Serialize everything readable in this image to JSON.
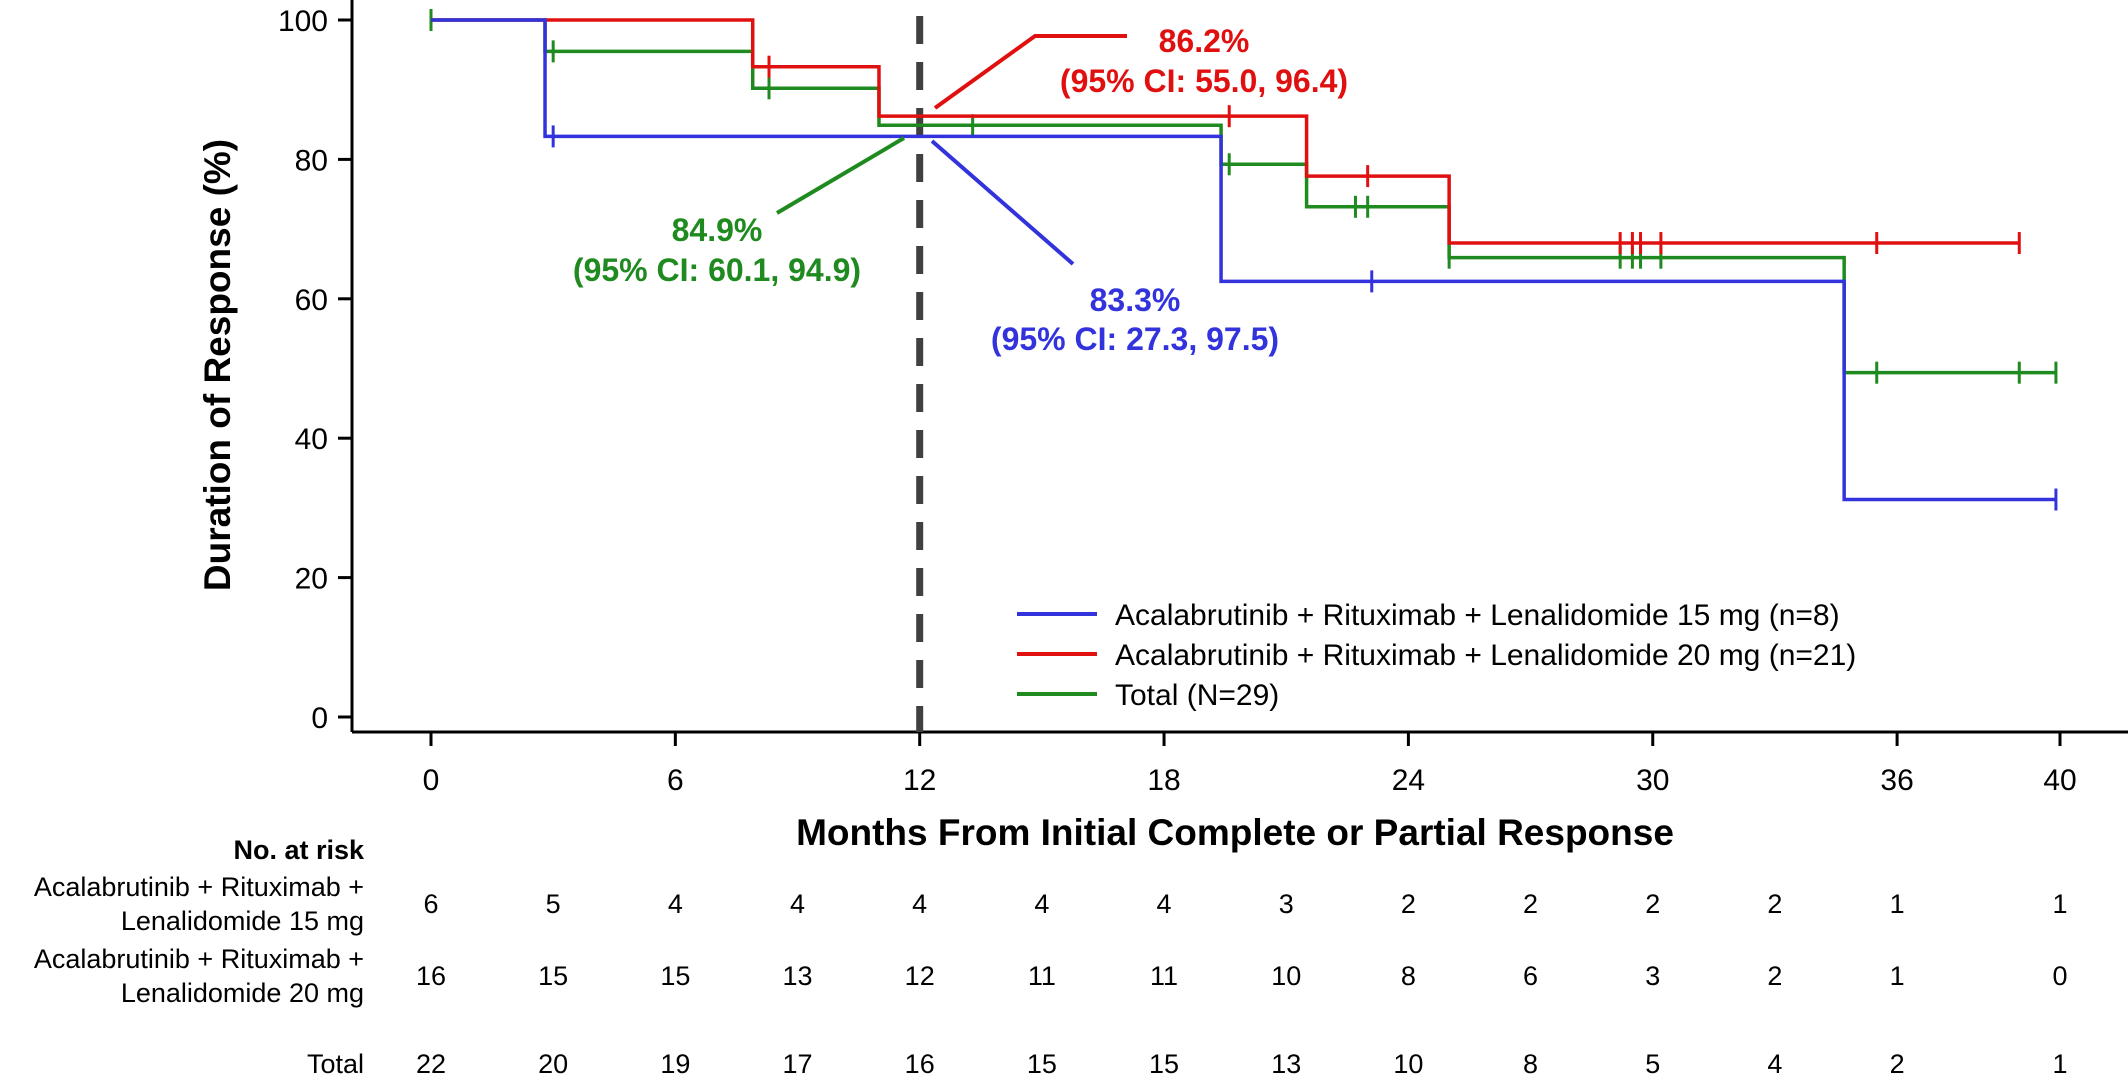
{
  "chart_data": {
    "type": "line",
    "subtype": "kaplan-meier step",
    "xlabel": "Months From Initial Complete or Partial Response",
    "ylabel": "Duration of Response (%)",
    "xlim": [
      0,
      40
    ],
    "ylim": [
      0,
      100
    ],
    "x_ticks": [
      0,
      6,
      12,
      18,
      24,
      30,
      36,
      40
    ],
    "y_ticks": [
      0,
      20,
      40,
      60,
      80,
      100
    ],
    "grid": false,
    "legend_position": "bottom-right",
    "reference_line": {
      "x": 12,
      "style": "dashed",
      "color": "#404040"
    },
    "series": [
      {
        "name": "Acalabrutinib + Rituximab + Lenalidomide 15 mg (n=8)",
        "color": "#3333dd",
        "steps": [
          [
            0,
            100
          ],
          [
            2.8,
            83.3
          ],
          [
            19.4,
            62.5
          ],
          [
            34.7,
            31.2
          ],
          [
            39.9,
            31.2
          ]
        ],
        "censored": [
          [
            3.0,
            83.3
          ],
          [
            23.1,
            62.5
          ],
          [
            39.9,
            31.2
          ]
        ]
      },
      {
        "name": "Acalabrutinib + Rituximab + Lenalidomide 20 mg (n=21)",
        "color": "#e01010",
        "steps": [
          [
            0,
            100
          ],
          [
            7.9,
            93.3
          ],
          [
            11.0,
            86.2
          ],
          [
            21.5,
            77.6
          ],
          [
            25.0,
            68.0
          ],
          [
            39.0,
            68.0
          ]
        ],
        "censored": [
          [
            8.3,
            93.3
          ],
          [
            19.6,
            86.2
          ],
          [
            23.0,
            77.6
          ],
          [
            29.2,
            68.0
          ],
          [
            29.5,
            68.0
          ],
          [
            29.7,
            68.0
          ],
          [
            30.2,
            68.0
          ],
          [
            35.5,
            68.0
          ],
          [
            39.0,
            68.0
          ]
        ]
      },
      {
        "name": "Total (N=29)",
        "color": "#1f8a1f",
        "steps": [
          [
            0,
            100
          ],
          [
            2.8,
            95.5
          ],
          [
            7.9,
            90.2
          ],
          [
            11.0,
            84.9
          ],
          [
            19.4,
            79.3
          ],
          [
            21.5,
            73.2
          ],
          [
            25.0,
            65.9
          ],
          [
            34.7,
            49.4
          ],
          [
            39.9,
            49.4
          ]
        ],
        "censored": [
          [
            0,
            100
          ],
          [
            3.0,
            95.5
          ],
          [
            8.3,
            90.2
          ],
          [
            13.3,
            84.9
          ],
          [
            19.6,
            79.3
          ],
          [
            22.7,
            73.2
          ],
          [
            23.0,
            73.2
          ],
          [
            25.0,
            65.9
          ],
          [
            29.2,
            65.9
          ],
          [
            29.5,
            65.9
          ],
          [
            29.7,
            65.9
          ],
          [
            30.2,
            65.9
          ],
          [
            35.5,
            49.4
          ],
          [
            39.0,
            49.4
          ],
          [
            39.9,
            49.4
          ]
        ]
      }
    ],
    "annotations": [
      {
        "line1": "86.2%",
        "line2": "(95% CI: 55.0, 96.4)",
        "color": "#e01010",
        "x": 12,
        "y": 86.2
      },
      {
        "line1": "84.9%",
        "line2": "(95% CI: 60.1, 94.9)",
        "color": "#1f8a1f",
        "x": 12,
        "y": 84.9
      },
      {
        "line1": "83.3%",
        "line2": "(95% CI: 27.3, 97.5)",
        "color": "#3333dd",
        "x": 12,
        "y": 83.3
      }
    ],
    "risk_table": {
      "title": "No. at risk",
      "x": [
        0,
        3,
        6,
        9,
        12,
        15,
        18,
        21,
        24,
        27,
        30,
        33,
        36,
        40
      ],
      "rows": [
        {
          "label_line1": "Acalabrutinib + Rituximab +",
          "label_line2": "Lenalidomide 15 mg",
          "values": [
            6,
            5,
            4,
            4,
            4,
            4,
            4,
            3,
            2,
            2,
            2,
            2,
            1,
            1
          ]
        },
        {
          "label_line1": "Acalabrutinib + Rituximab +",
          "label_line2": "Lenalidomide 20 mg",
          "values": [
            16,
            15,
            15,
            13,
            12,
            11,
            11,
            10,
            8,
            6,
            3,
            2,
            1,
            0
          ]
        },
        {
          "label_line1": "",
          "label_line2": "Total",
          "values": [
            22,
            20,
            19,
            17,
            16,
            15,
            15,
            13,
            10,
            8,
            5,
            4,
            2,
            1
          ]
        }
      ]
    }
  }
}
